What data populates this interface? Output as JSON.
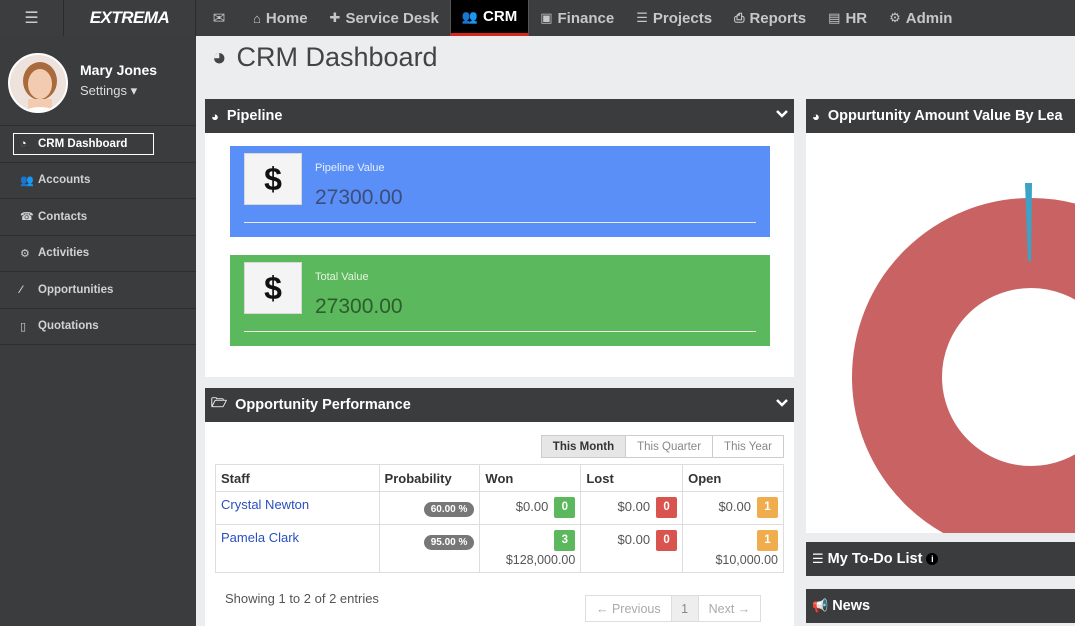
{
  "topbar": {
    "brand": "EXTREMA",
    "nav": [
      {
        "label": "Home",
        "icon": "home-icon"
      },
      {
        "label": "Service Desk",
        "icon": "puzzle-icon"
      },
      {
        "label": "CRM",
        "icon": "users-icon",
        "active": true
      },
      {
        "label": "Finance",
        "icon": "money-icon"
      },
      {
        "label": "Projects",
        "icon": "list-icon"
      },
      {
        "label": "Reports",
        "icon": "print-icon"
      },
      {
        "label": "HR",
        "icon": "briefcase-icon"
      },
      {
        "label": "Admin",
        "icon": "gear-icon"
      }
    ]
  },
  "sidebar": {
    "user_name": "Mary Jones",
    "settings_label": "Settings",
    "items": [
      {
        "label": "CRM Dashboard",
        "icon": "dashboard-icon",
        "active": true
      },
      {
        "label": "Accounts",
        "icon": "users-icon"
      },
      {
        "label": "Contacts",
        "icon": "contacts-icon"
      },
      {
        "label": "Activities",
        "icon": "cogs-icon"
      },
      {
        "label": "Opportunities",
        "icon": "wand-icon"
      },
      {
        "label": "Quotations",
        "icon": "file-icon"
      }
    ]
  },
  "page": {
    "title": "CRM Dashboard"
  },
  "pipeline": {
    "title": "Pipeline",
    "boxes": [
      {
        "label": "Pipeline Value",
        "value": "27300.00",
        "color": "#5b8ff8"
      },
      {
        "label": "Total Value",
        "value": "27300.00",
        "color": "#5cb85c"
      }
    ]
  },
  "performance": {
    "title": "Opportunity Performance",
    "periods": [
      "This Month",
      "This Quarter",
      "This Year"
    ],
    "columns": [
      "Staff",
      "Probability",
      "Won",
      "Lost",
      "Open"
    ],
    "rows": [
      {
        "staff": "Crystal Newton",
        "probability": "60.00 %",
        "won": "$0.00",
        "won_count": "0",
        "lost": "$0.00",
        "lost_count": "0",
        "open": "$0.00",
        "open_count": "1"
      },
      {
        "staff": "Pamela Clark",
        "probability": "95.00 %",
        "won": "$128,000.00",
        "won_count": "3",
        "lost": "$0.00",
        "lost_count": "0",
        "open": "$10,000.00",
        "open_count": "1"
      }
    ],
    "showing": "Showing 1 to 2 of 2 entries",
    "pager": {
      "prev": "← Previous",
      "page": "1",
      "next": "Next →"
    }
  },
  "donut_panel": {
    "title": "Oppurtunity Amount Value By Lea",
    "colors": {
      "main": "#c96262",
      "slice": "#3aa3c7"
    }
  },
  "todo": {
    "title": "My To-Do List",
    "info": "i"
  },
  "news": {
    "title": "News"
  }
}
